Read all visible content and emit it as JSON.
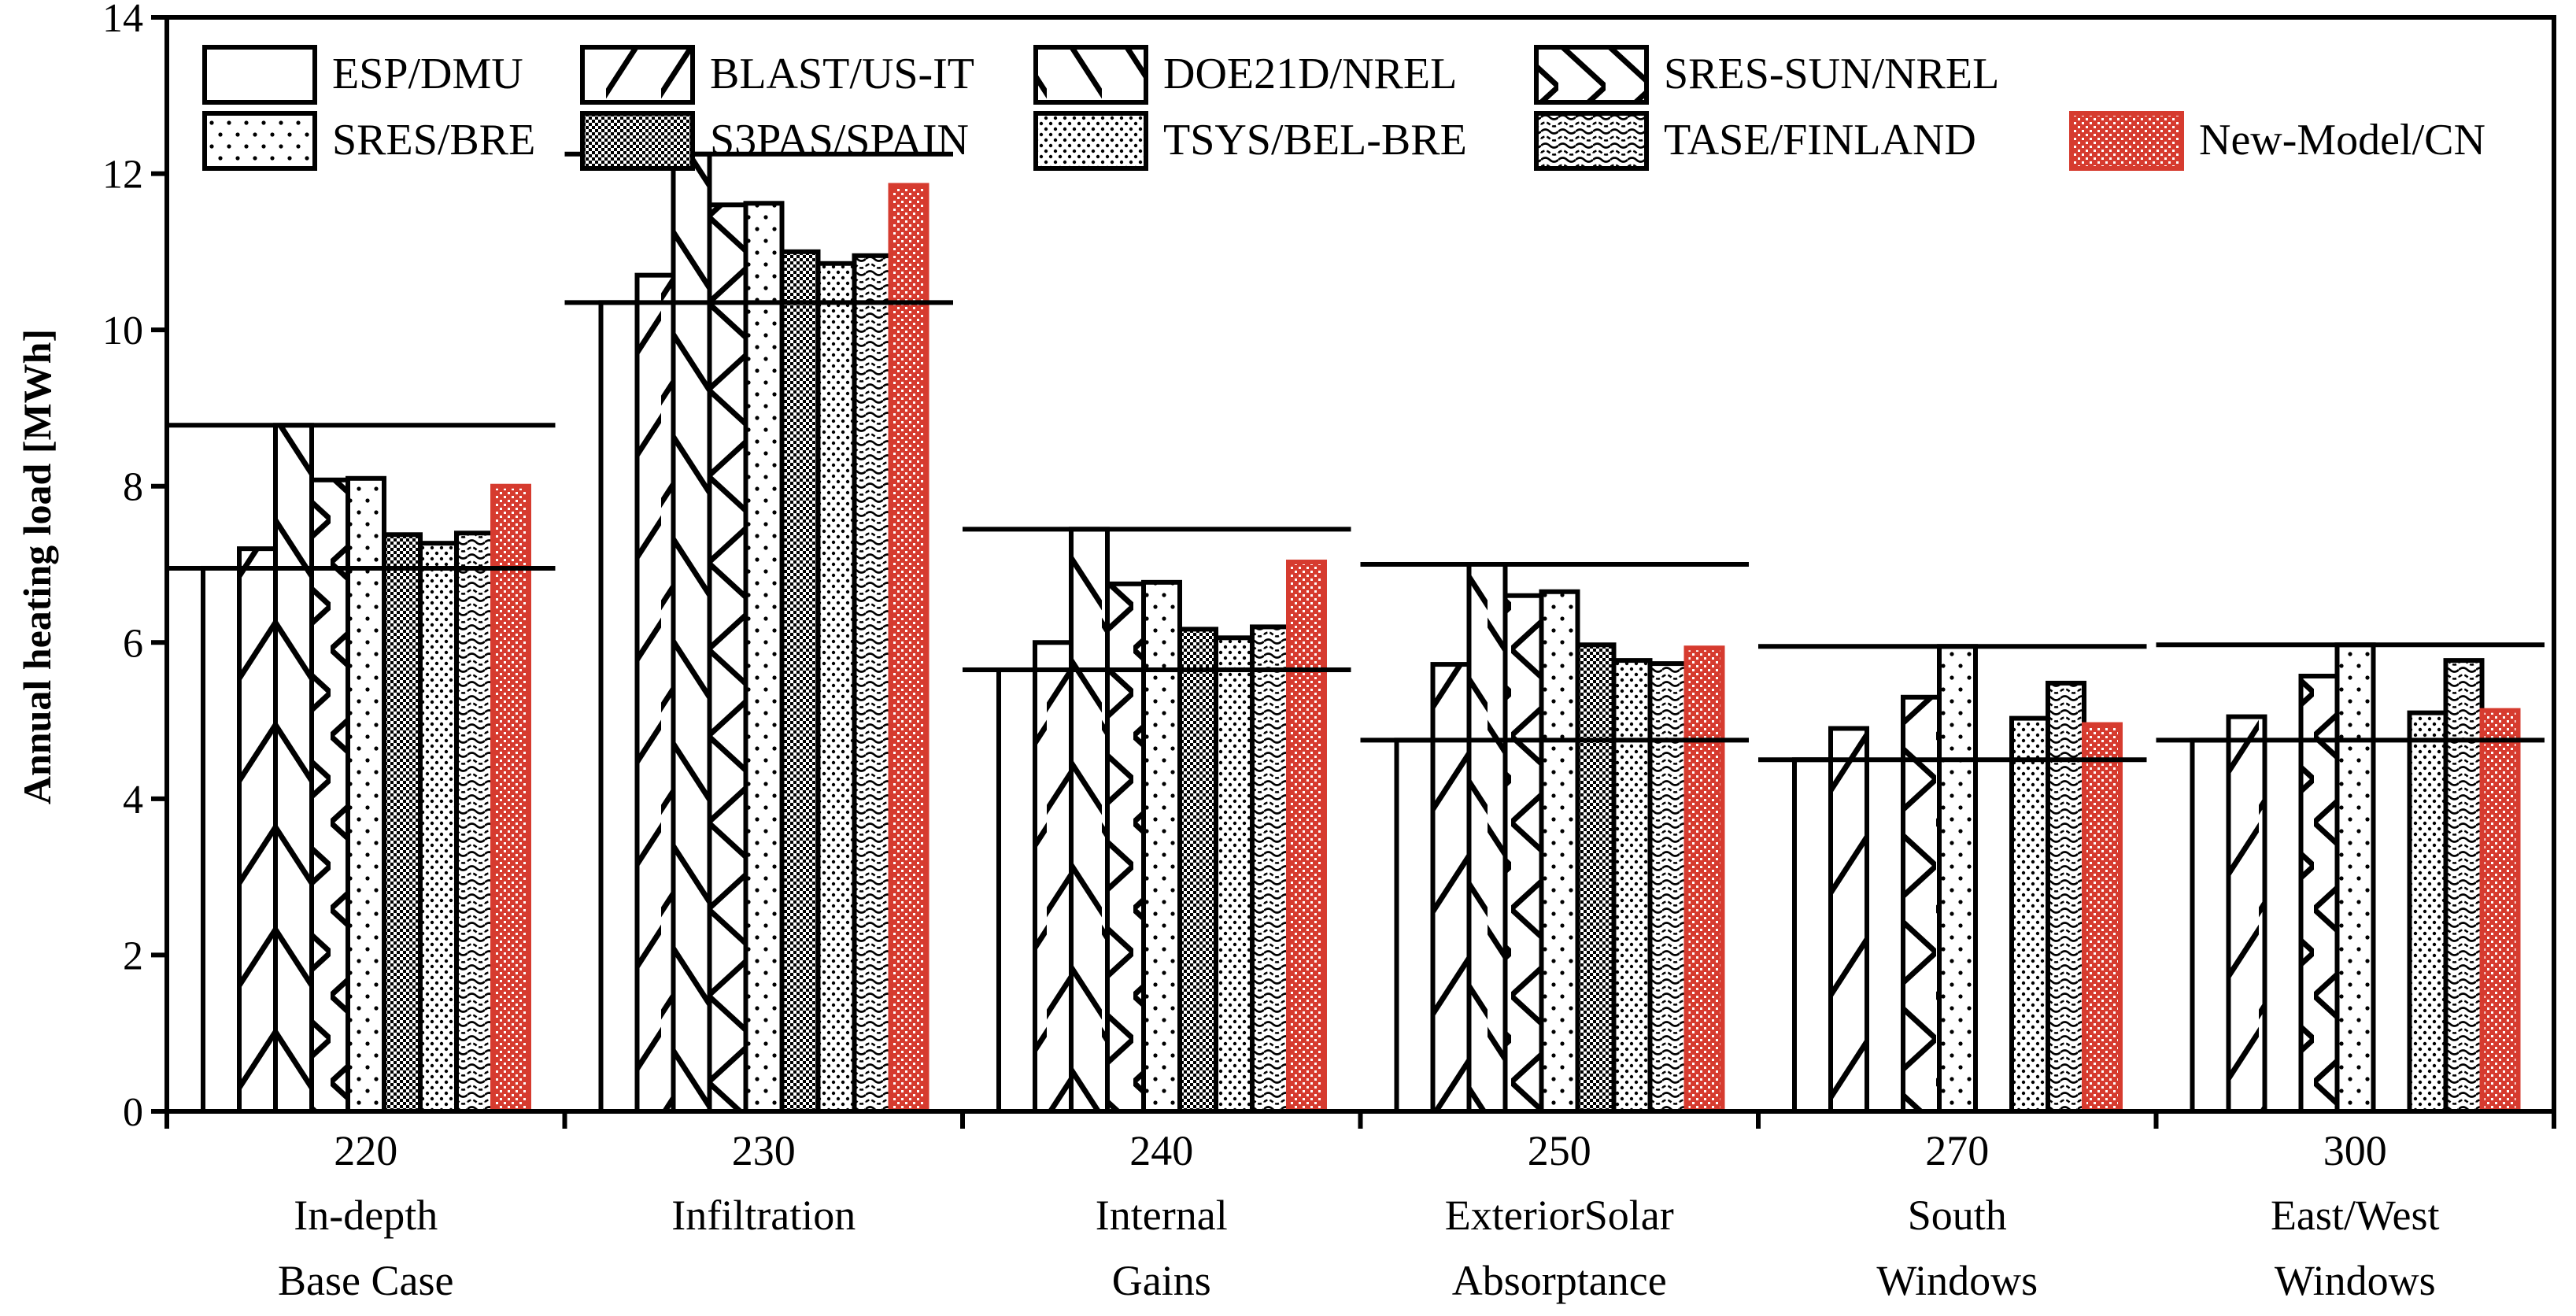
{
  "chart_data": {
    "type": "bar",
    "title": "",
    "xlabel": "",
    "ylabel": "Annual heating load [MWh]",
    "ylim": [
      0,
      14
    ],
    "yticks": [
      0,
      2,
      4,
      6,
      8,
      10,
      12,
      14
    ],
    "grid": false,
    "legend_position": "top",
    "categories": [
      {
        "code": "220",
        "line1": "In-depth",
        "line2": "Base Case"
      },
      {
        "code": "230",
        "line1": "Infiltration",
        "line2": ""
      },
      {
        "code": "240",
        "line1": "Internal",
        "line2": "Gains"
      },
      {
        "code": "250",
        "line1": "ExteriorSolar",
        "line2": "Absorptance"
      },
      {
        "code": "270",
        "line1": "South",
        "line2": "Windows"
      },
      {
        "code": "300",
        "line1": "East/West",
        "line2": "Windows"
      }
    ],
    "series": [
      {
        "name": "ESP/DMU",
        "pattern": "blank",
        "values": [
          6.95,
          10.35,
          5.65,
          4.75,
          4.5,
          4.75
        ]
      },
      {
        "name": "BLAST/US-IT",
        "pattern": "forward-diagonal",
        "values": [
          7.2,
          10.7,
          6.0,
          5.72,
          4.9,
          5.05
        ]
      },
      {
        "name": "DOE21D/NREL",
        "pattern": "back-diagonal",
        "values": [
          8.78,
          12.25,
          7.45,
          7.0,
          null,
          null
        ]
      },
      {
        "name": "SRES-SUN/NREL",
        "pattern": "cross-diagonal",
        "values": [
          8.08,
          11.6,
          6.75,
          6.6,
          5.3,
          5.57
        ]
      },
      {
        "name": "SRES/BRE",
        "pattern": "sparse-dots",
        "values": [
          8.1,
          11.62,
          6.77,
          6.65,
          5.95,
          5.97
        ]
      },
      {
        "name": "S3PAS/SPAIN",
        "pattern": "dense-dots",
        "values": [
          7.38,
          11.0,
          6.17,
          5.97,
          null,
          null
        ]
      },
      {
        "name": "TSYS/BEL-BRE",
        "pattern": "dots",
        "values": [
          7.27,
          10.85,
          6.06,
          5.77,
          5.03,
          5.1
        ]
      },
      {
        "name": "TASE/FINLAND",
        "pattern": "waves",
        "values": [
          7.4,
          10.95,
          6.2,
          5.73,
          5.48,
          5.77
        ]
      },
      {
        "name": "New-Model/CN",
        "pattern": "checker-red",
        "values": [
          8.0,
          11.85,
          7.03,
          5.93,
          4.95,
          5.13
        ]
      }
    ],
    "reference_lines": [
      {
        "min": 6.95,
        "max": 8.78
      },
      {
        "min": 10.35,
        "max": 12.25
      },
      {
        "min": 5.65,
        "max": 7.45
      },
      {
        "min": 4.75,
        "max": 7.0
      },
      {
        "min": 4.5,
        "max": 5.95
      },
      {
        "min": 4.75,
        "max": 5.97
      }
    ]
  },
  "colors": {
    "axis": "#000000",
    "bar_outline": "#000000",
    "highlight": "#d63b2f",
    "highlight_fill": "#ffffff"
  }
}
